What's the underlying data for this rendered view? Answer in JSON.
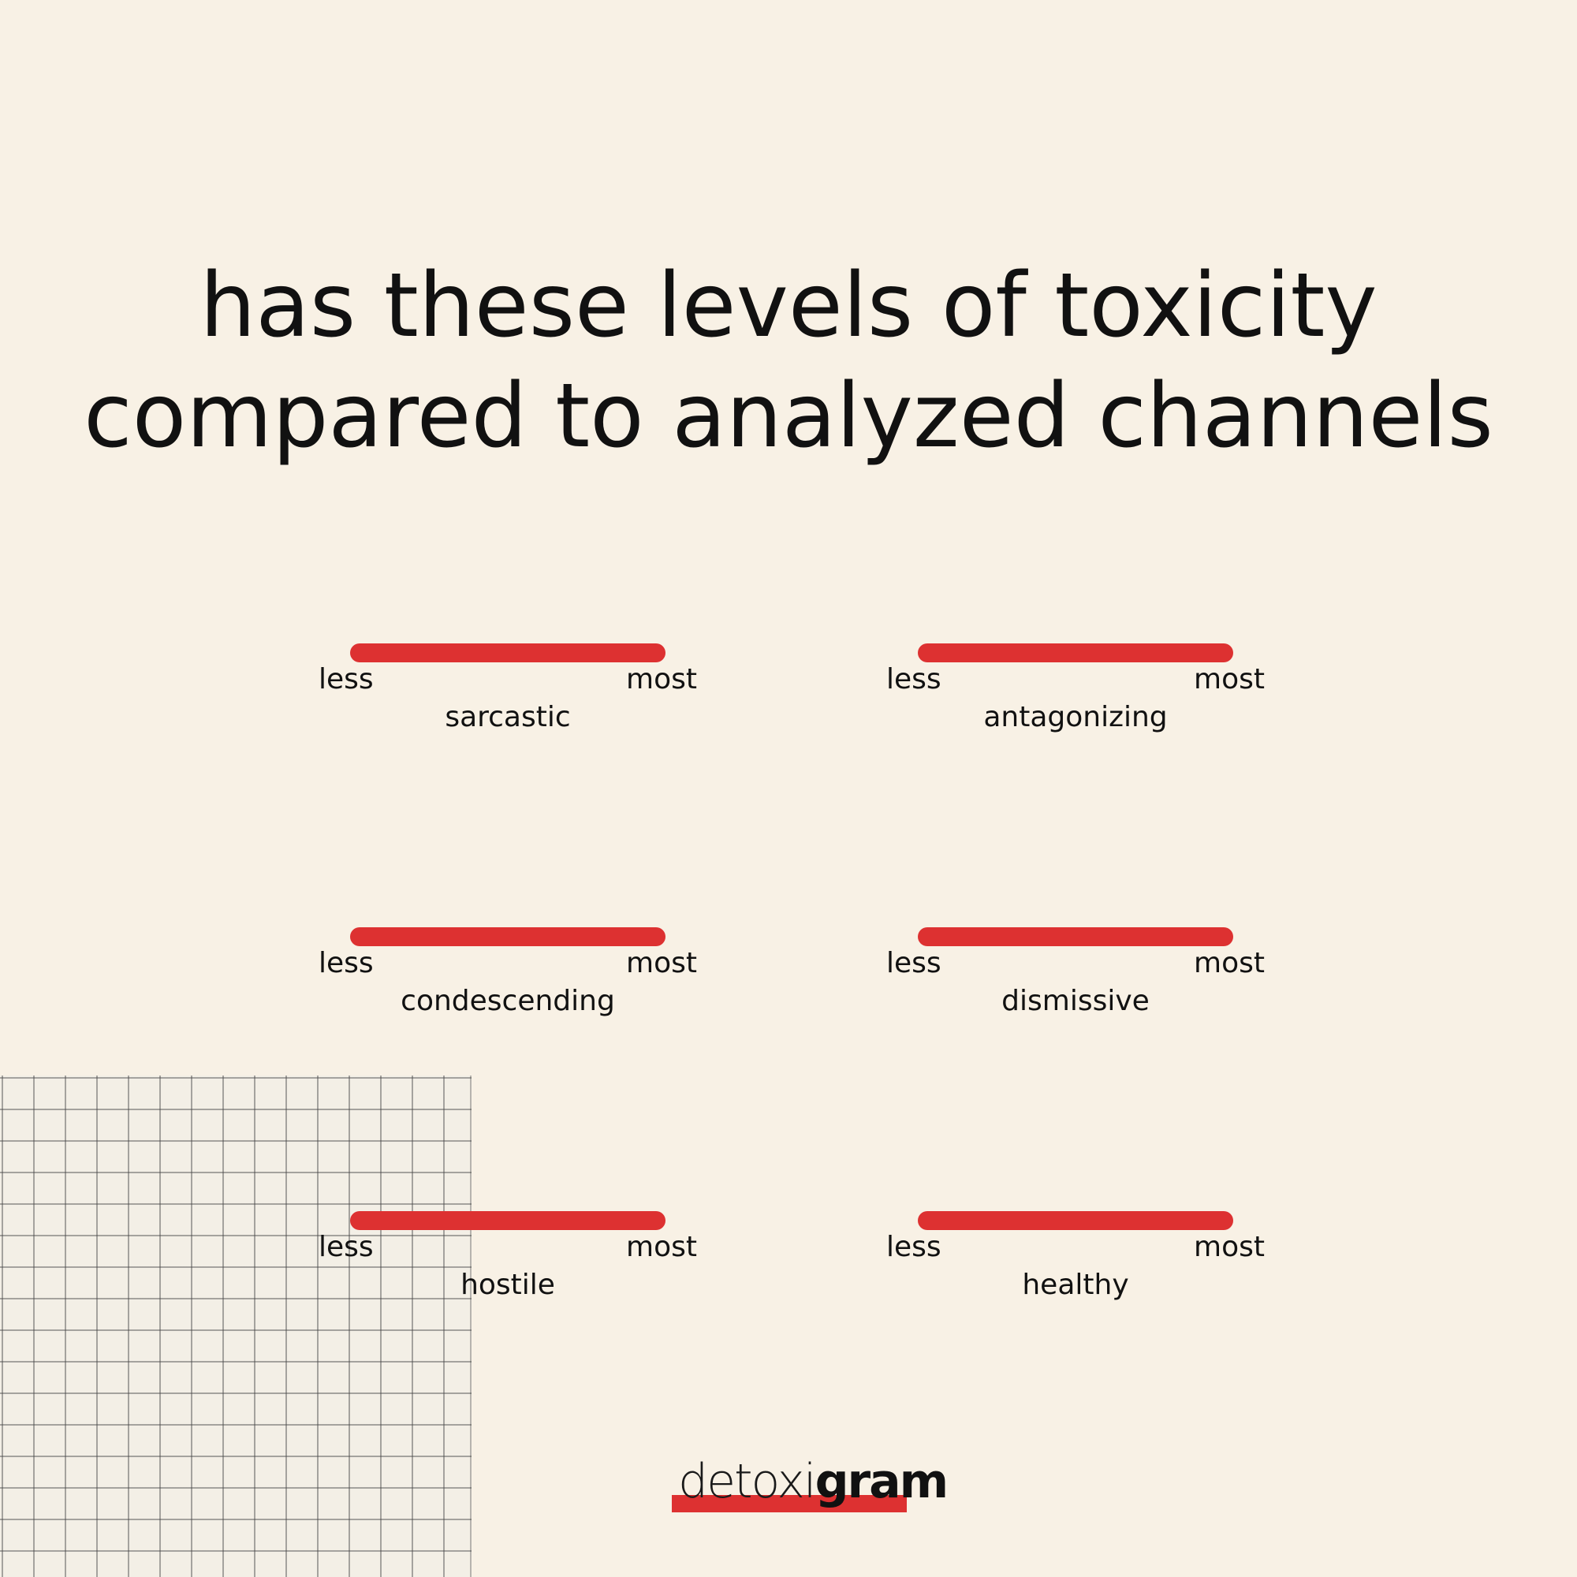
{
  "headline": {
    "line1": "has these levels of toxicity",
    "line2": "compared to analyzed channels"
  },
  "scale_labels": {
    "less": "less",
    "most": "most"
  },
  "scales": [
    {
      "name": "sarcastic"
    },
    {
      "name": "antagonizing"
    },
    {
      "name": "condescending"
    },
    {
      "name": "dismissive"
    },
    {
      "name": "hostile"
    },
    {
      "name": "healthy"
    }
  ],
  "logo": {
    "light": "detoxi",
    "bold": "gram"
  },
  "colors": {
    "background": "#f8f1e5",
    "accent": "#dd3131",
    "text": "#111111"
  }
}
